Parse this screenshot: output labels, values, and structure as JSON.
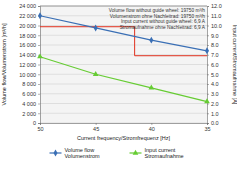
{
  "chart_data": {
    "type": "line",
    "x_label": "Current frequency/Stromfrequenz [Hz]",
    "y_label": "Volume flow/Volumenstrom [m³/h]",
    "y2_label": "Input current/Stromaufnahme [A]",
    "x": [
      50,
      45,
      40,
      35
    ],
    "xlim": [
      50,
      35
    ],
    "xticks": [
      50,
      45,
      40,
      35
    ],
    "ylim": [
      0,
      24000
    ],
    "yticks": [
      0,
      {
        "value": 2000,
        "label": "2 000"
      },
      {
        "value": 4000,
        "label": "4 000"
      },
      {
        "value": 6000,
        "label": "6 000"
      },
      {
        "value": 8000,
        "label": "8 000"
      },
      {
        "value": 10000,
        "label": "10 000"
      },
      {
        "value": 12000,
        "label": "12 000"
      },
      {
        "value": 14000,
        "label": "14 000"
      },
      {
        "value": 16000,
        "label": "16 000"
      },
      {
        "value": 18000,
        "label": "18 000"
      },
      {
        "value": 20000,
        "label": "20 000"
      },
      {
        "value": 22000,
        "label": "22 000"
      },
      {
        "value": 24000,
        "label": "24 000"
      }
    ],
    "y2lim": [
      0,
      12
    ],
    "y2ticks": [
      {
        "value": 0,
        "label": "0.0"
      },
      {
        "value": 1,
        "label": "1.0"
      },
      {
        "value": 2,
        "label": "2.0"
      },
      {
        "value": 3,
        "label": "3.0"
      },
      {
        "value": 4,
        "label": "4.0"
      },
      {
        "value": 5,
        "label": "5.0"
      },
      {
        "value": 6,
        "label": "6.0"
      },
      {
        "value": 7,
        "label": "7.0"
      },
      {
        "value": 8,
        "label": "8.0"
      },
      {
        "value": 9,
        "label": "9.0"
      },
      {
        "value": 10,
        "label": "10.0"
      },
      {
        "value": 11,
        "label": "11.0"
      },
      {
        "value": 12,
        "label": "12.0"
      }
    ],
    "grid": true,
    "legend": "bottom",
    "series": [
      {
        "name": [
          "Volume flow",
          "Volumenstrom"
        ],
        "color": "#3a6fb5",
        "marker": "diamond",
        "values": [
          22000,
          19500,
          17000,
          14800
        ]
      },
      {
        "name": [
          "Input current",
          "Stromaufnahme"
        ],
        "color": "#66cc33",
        "marker": "triangle",
        "axis": "y2",
        "values": [
          6.8,
          5.0,
          3.6,
          2.2
        ]
      }
    ],
    "reference_lines": [
      {
        "axis": "y",
        "value": 19750,
        "x": [
          50,
          41.5
        ],
        "color": "#e0301e"
      },
      {
        "axis": "y2",
        "value": 6.9,
        "x": [
          41.5,
          35
        ],
        "color": "#e0301e"
      }
    ],
    "annotations": [
      {
        "text": [
          "Volume flow without guide wheel: 19750 m³/h",
          "Volumenstrom ohne Nachleitrad: 19750 m³/h"
        ]
      },
      {
        "text": [
          "Input current without guide wheel: 6,9 A",
          "Stromaufnahme ohne Nachleitrad: 6,9 A"
        ]
      }
    ]
  }
}
